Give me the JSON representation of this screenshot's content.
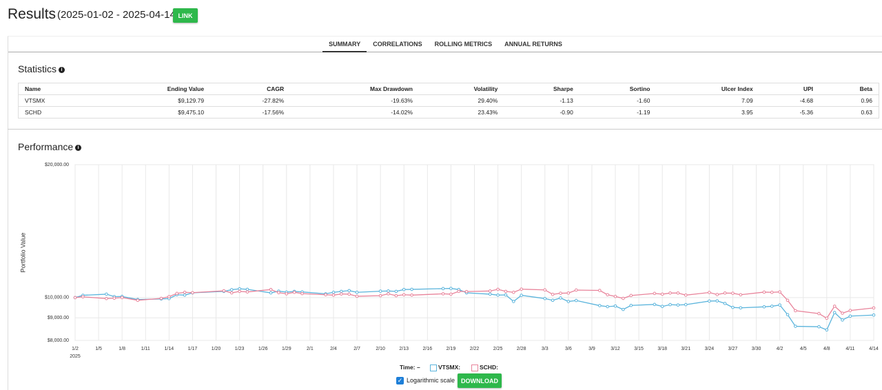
{
  "header": {
    "title": "Results",
    "date_range": "(2025-01-02 - 2025-04-14)",
    "link_button": "LINK"
  },
  "tabs": {
    "items": [
      "SUMMARY",
      "CORRELATIONS",
      "ROLLING METRICS",
      "ANNUAL RETURNS"
    ],
    "active": 0
  },
  "statistics": {
    "title": "Statistics",
    "columns": [
      "Name",
      "Ending Value",
      "CAGR",
      "Max Drawdown",
      "Volatility",
      "Sharpe",
      "Sortino",
      "Ulcer Index",
      "UPI",
      "Beta"
    ],
    "rows": [
      [
        "VTSMX",
        "$9,129.79",
        "-27.82%",
        "-19.63%",
        "29.40%",
        "-1.13",
        "-1.60",
        "7.09",
        "-4.68",
        "0.96"
      ],
      [
        "SCHD",
        "$9,475.10",
        "-17.56%",
        "-14.02%",
        "23.43%",
        "-0.90",
        "-1.19",
        "3.95",
        "-5.36",
        "0.63"
      ]
    ]
  },
  "performance": {
    "title": "Performance",
    "legend": {
      "time_label": "Time:",
      "time_value": "–",
      "items": [
        "VTSMX:",
        "SCHD:"
      ]
    },
    "log_checkbox": "Logarithmic scale",
    "download_button": "DOWNLOAD"
  },
  "chart_data": {
    "type": "line",
    "ylabel": "Portfolio Value",
    "log_scale": true,
    "grid": true,
    "ylim": [
      8000,
      20000
    ],
    "yticks": [
      {
        "value": 8000,
        "label": "$8,000.00"
      },
      {
        "value": 9000,
        "label": "$9,000.00"
      },
      {
        "value": 10000,
        "label": "$10,000.00"
      },
      {
        "value": 20000,
        "label": "$20,000.00"
      }
    ],
    "xlim": [
      "2025-01-02",
      "2025-04-14"
    ],
    "x_sublabel": "2025",
    "xticks": [
      {
        "value": "2025-01-02",
        "label": "1/2"
      },
      {
        "value": "2025-01-05",
        "label": "1/5"
      },
      {
        "value": "2025-01-08",
        "label": "1/8"
      },
      {
        "value": "2025-01-11",
        "label": "1/11"
      },
      {
        "value": "2025-01-14",
        "label": "1/14"
      },
      {
        "value": "2025-01-17",
        "label": "1/17"
      },
      {
        "value": "2025-01-20",
        "label": "1/20"
      },
      {
        "value": "2025-01-23",
        "label": "1/23"
      },
      {
        "value": "2025-01-26",
        "label": "1/26"
      },
      {
        "value": "2025-01-29",
        "label": "1/29"
      },
      {
        "value": "2025-02-01",
        "label": "2/1"
      },
      {
        "value": "2025-02-04",
        "label": "2/4"
      },
      {
        "value": "2025-02-07",
        "label": "2/7"
      },
      {
        "value": "2025-02-10",
        "label": "2/10"
      },
      {
        "value": "2025-02-13",
        "label": "2/13"
      },
      {
        "value": "2025-02-16",
        "label": "2/16"
      },
      {
        "value": "2025-02-19",
        "label": "2/19"
      },
      {
        "value": "2025-02-22",
        "label": "2/22"
      },
      {
        "value": "2025-02-25",
        "label": "2/25"
      },
      {
        "value": "2025-02-28",
        "label": "2/28"
      },
      {
        "value": "2025-03-03",
        "label": "3/3"
      },
      {
        "value": "2025-03-06",
        "label": "3/6"
      },
      {
        "value": "2025-03-09",
        "label": "3/9"
      },
      {
        "value": "2025-03-12",
        "label": "3/12"
      },
      {
        "value": "2025-03-15",
        "label": "3/15"
      },
      {
        "value": "2025-03-18",
        "label": "3/18"
      },
      {
        "value": "2025-03-21",
        "label": "3/21"
      },
      {
        "value": "2025-03-24",
        "label": "3/24"
      },
      {
        "value": "2025-03-27",
        "label": "3/27"
      },
      {
        "value": "2025-03-30",
        "label": "3/30"
      },
      {
        "value": "2025-04-02",
        "label": "4/2"
      },
      {
        "value": "2025-04-05",
        "label": "4/5"
      },
      {
        "value": "2025-04-08",
        "label": "4/8"
      },
      {
        "value": "2025-04-11",
        "label": "4/11"
      },
      {
        "value": "2025-04-14",
        "label": "4/14"
      }
    ],
    "x": [
      "2025-01-02",
      "2025-01-03",
      "2025-01-06",
      "2025-01-07",
      "2025-01-08",
      "2025-01-10",
      "2025-01-13",
      "2025-01-14",
      "2025-01-15",
      "2025-01-16",
      "2025-01-17",
      "2025-01-21",
      "2025-01-22",
      "2025-01-23",
      "2025-01-24",
      "2025-01-27",
      "2025-01-28",
      "2025-01-29",
      "2025-01-30",
      "2025-01-31",
      "2025-02-03",
      "2025-02-04",
      "2025-02-05",
      "2025-02-06",
      "2025-02-07",
      "2025-02-10",
      "2025-02-11",
      "2025-02-12",
      "2025-02-13",
      "2025-02-14",
      "2025-02-18",
      "2025-02-19",
      "2025-02-20",
      "2025-02-21",
      "2025-02-24",
      "2025-02-25",
      "2025-02-26",
      "2025-02-27",
      "2025-02-28",
      "2025-03-03",
      "2025-03-04",
      "2025-03-05",
      "2025-03-06",
      "2025-03-07",
      "2025-03-10",
      "2025-03-11",
      "2025-03-12",
      "2025-03-13",
      "2025-03-14",
      "2025-03-17",
      "2025-03-18",
      "2025-03-19",
      "2025-03-20",
      "2025-03-21",
      "2025-03-24",
      "2025-03-25",
      "2025-03-26",
      "2025-03-27",
      "2025-03-28",
      "2025-03-31",
      "2025-04-01",
      "2025-04-02",
      "2025-04-03",
      "2025-04-04",
      "2025-04-07",
      "2025-04-08",
      "2025-04-09",
      "2025-04-10",
      "2025-04-11",
      "2025-04-14"
    ],
    "series": [
      {
        "name": "VTSMX",
        "color": "#5ab4dc",
        "values": [
          10000,
          10120,
          10180,
          10050,
          10060,
          9900,
          9930,
          9950,
          10150,
          10130,
          10250,
          10330,
          10420,
          10470,
          10440,
          10250,
          10340,
          10290,
          10330,
          10300,
          10200,
          10280,
          10330,
          10370,
          10280,
          10340,
          10350,
          10330,
          10430,
          10440,
          10480,
          10490,
          10430,
          10250,
          10180,
          10130,
          10140,
          9800,
          10120,
          9950,
          9860,
          9980,
          9800,
          9850,
          9590,
          9540,
          9570,
          9400,
          9600,
          9650,
          9550,
          9640,
          9620,
          9640,
          9820,
          9830,
          9700,
          9500,
          9480,
          9530,
          9560,
          9620,
          9150,
          8610,
          8590,
          8450,
          9250,
          8900,
          9080,
          9129.79
        ]
      },
      {
        "name": "SCHD",
        "color": "#e8839a",
        "values": [
          10000,
          10040,
          9950,
          9970,
          10000,
          9860,
          9960,
          10050,
          10220,
          10280,
          10260,
          10360,
          10250,
          10330,
          10300,
          10430,
          10260,
          10200,
          10280,
          10210,
          10150,
          10130,
          10190,
          10180,
          10070,
          10100,
          10200,
          10100,
          10150,
          10130,
          10200,
          10180,
          10330,
          10320,
          10350,
          10440,
          10330,
          10280,
          10450,
          10410,
          10170,
          10230,
          10240,
          10400,
          10380,
          10150,
          10060,
          9960,
          10110,
          10220,
          10180,
          10240,
          10240,
          10130,
          10270,
          10160,
          10240,
          10230,
          10150,
          10290,
          10280,
          10300,
          9860,
          9340,
          9200,
          8980,
          9560,
          9220,
          9350,
          9475.1
        ]
      }
    ]
  }
}
